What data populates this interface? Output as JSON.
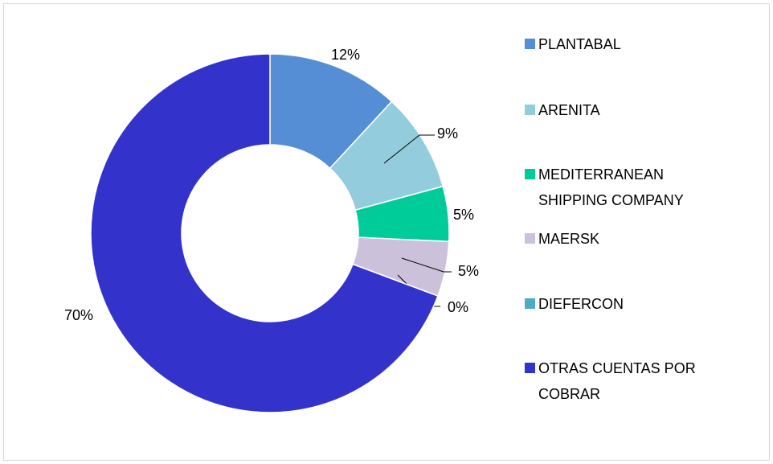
{
  "chart_data": {
    "type": "donut",
    "categories": [
      "PLANTABAL",
      "ARENITA",
      "MEDITERRANEAN SHIPPING COMPANY",
      "MAERSK",
      "DIEFERCON",
      "OTRAS CUENTAS POR COBRAR"
    ],
    "values": [
      12,
      9,
      5,
      5,
      0,
      70
    ],
    "value_labels": [
      "12%",
      "9%",
      "5%",
      "5%",
      "0%",
      "70%"
    ],
    "colors": [
      "#558ed5",
      "#93cddd",
      "#00cc99",
      "#ccc1da",
      "#4bacc6",
      "#3333cc"
    ],
    "legend": "right"
  }
}
